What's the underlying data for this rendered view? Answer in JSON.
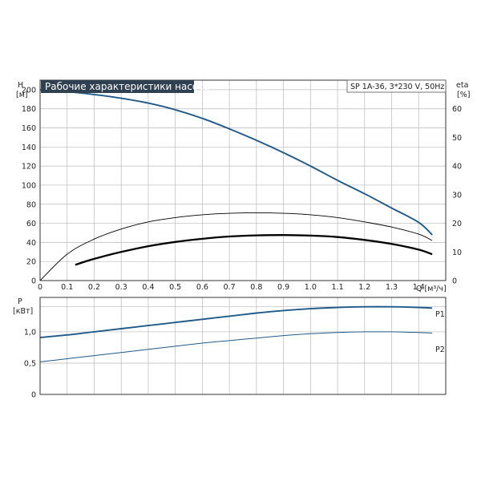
{
  "colors": {
    "head_curve": "#1f5a8a",
    "power_curves": "#1f5a8a",
    "efficiency_curves": "#000000",
    "title_background": "#2f4050",
    "grid": "#b9b9b9"
  },
  "chart_data": [
    {
      "type": "line",
      "title": "Рабочие характеристики насоса",
      "model_label": "SP 1A-36, 3*230 V, 50Hz",
      "xlabel": "Q [м³/ч]",
      "x_ticks": [
        "0",
        "0.1",
        "0.2",
        "0.3",
        "0.4",
        "0.5",
        "0.6",
        "0.7",
        "0.8",
        "0.9",
        "1.0",
        "1.1",
        "1.2",
        "1.3",
        "1.4"
      ],
      "xlim": [
        0,
        1.5
      ],
      "ylabel_left_name": "H",
      "ylabel_left_unit": "[м]",
      "y_left_ticks": [
        "0",
        "20",
        "40",
        "60",
        "80",
        "100",
        "120",
        "140",
        "160",
        "180",
        "200"
      ],
      "ylim_left": [
        0,
        210
      ],
      "ylabel_right_name": "eta",
      "ylabel_right_unit": "[%]",
      "y_right_ticks": [
        "0",
        "10",
        "20",
        "30",
        "40",
        "50",
        "60"
      ],
      "ylim_right": [
        0,
        70
      ],
      "grid": true,
      "series": [
        {
          "axis": "left",
          "x": [
            0,
            0.1,
            0.2,
            0.3,
            0.4,
            0.5,
            0.6,
            0.7,
            0.8,
            0.9,
            1.0,
            1.1,
            1.2,
            1.3,
            1.4,
            1.45
          ],
          "values": [
            200,
            198,
            195,
            191,
            186,
            179,
            170,
            159,
            147,
            134,
            120,
            105,
            91,
            76,
            61,
            48
          ]
        },
        {
          "axis": "right",
          "x": [
            0,
            0.1,
            0.2,
            0.3,
            0.4,
            0.5,
            0.6,
            0.7,
            0.8,
            0.9,
            1.0,
            1.1,
            1.2,
            1.3,
            1.4,
            1.45
          ],
          "values": [
            0,
            9.2,
            14.5,
            18,
            20.5,
            22,
            23,
            23.5,
            23.7,
            23.5,
            23,
            22,
            20.5,
            18.7,
            16.2,
            14
          ]
        },
        {
          "axis": "right",
          "x": [
            0.13,
            0.2,
            0.3,
            0.4,
            0.5,
            0.6,
            0.7,
            0.8,
            0.9,
            1.0,
            1.1,
            1.2,
            1.3,
            1.4,
            1.45
          ],
          "values": [
            5.5,
            7.6,
            10,
            12,
            13.5,
            14.6,
            15.4,
            15.8,
            15.9,
            15.7,
            15.2,
            14.2,
            12.8,
            10.8,
            9.2
          ]
        }
      ]
    },
    {
      "type": "line",
      "xlim": [
        0,
        1.5
      ],
      "ylabel_name": "P",
      "ylabel_unit": "[кВт]",
      "y_ticks": [
        "0",
        "0,5",
        "1,0"
      ],
      "ylim": [
        0,
        1.55
      ],
      "grid": true,
      "series": [
        {
          "name": "P1",
          "x": [
            0,
            0.1,
            0.2,
            0.3,
            0.4,
            0.5,
            0.6,
            0.7,
            0.8,
            0.9,
            1.0,
            1.1,
            1.2,
            1.3,
            1.4,
            1.45
          ],
          "values": [
            0.91,
            0.95,
            1.0,
            1.05,
            1.1,
            1.15,
            1.2,
            1.25,
            1.3,
            1.34,
            1.37,
            1.39,
            1.4,
            1.4,
            1.39,
            1.38
          ]
        },
        {
          "name": "P2",
          "x": [
            0,
            0.1,
            0.2,
            0.3,
            0.4,
            0.5,
            0.6,
            0.7,
            0.8,
            0.9,
            1.0,
            1.1,
            1.2,
            1.3,
            1.4,
            1.45
          ],
          "values": [
            0.52,
            0.57,
            0.62,
            0.67,
            0.72,
            0.77,
            0.82,
            0.86,
            0.9,
            0.94,
            0.97,
            0.99,
            1.0,
            1.0,
            0.99,
            0.98
          ]
        }
      ]
    }
  ]
}
